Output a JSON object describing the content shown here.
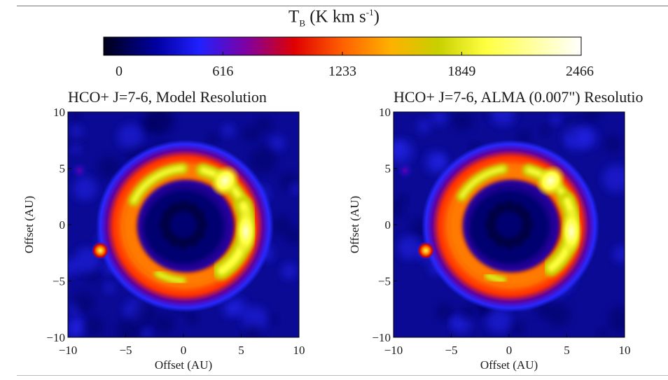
{
  "colorbar": {
    "title_main": "T",
    "title_sub": "B",
    "title_unit": " (K km s",
    "title_sup": "-1",
    "title_close": ")",
    "ticks": [
      "0",
      "616",
      "1233",
      "1849",
      "2466"
    ],
    "range": [
      0,
      2466
    ],
    "colors": [
      "#000018",
      "#0000a0",
      "#2020ff",
      "#8000a0",
      "#e00000",
      "#ff6000",
      "#ffb000",
      "#c8d000",
      "#ffff40",
      "#ffffff"
    ]
  },
  "chart_data": [
    {
      "type": "heatmap",
      "title": "HCO+ J=7-6, Model Resolution",
      "xlabel": "Offset (AU)",
      "ylabel": "Offset (AU)",
      "xlim": [
        -10,
        10
      ],
      "ylim": [
        -10,
        10
      ],
      "xticks": [
        "−10",
        "−5",
        "0",
        "5",
        "10"
      ],
      "yticks": [
        "10",
        "5",
        "0",
        "−5",
        "−10"
      ],
      "ring": {
        "center": [
          0,
          0
        ],
        "inner_radius_au": 3.5,
        "outer_radius_au": 6.3,
        "bright_side": "east"
      },
      "features": [
        {
          "x": -7.2,
          "y": -2.3,
          "value": 1849
        },
        {
          "x": -9,
          "y": 4.8,
          "value": 616
        }
      ]
    },
    {
      "type": "heatmap",
      "title": "HCO+ J=7-6, ALMA (0.007\") Resolutio",
      "xlabel": "Offset (AU)",
      "ylabel": "Offset (AU)",
      "xlim": [
        -10,
        10
      ],
      "ylim": [
        -10,
        10
      ],
      "xticks": [
        "−10",
        "−5",
        "0",
        "5",
        "10"
      ],
      "yticks": [
        "10",
        "5",
        "0",
        "−5",
        "−10"
      ],
      "ring": {
        "center": [
          0,
          0
        ],
        "inner_radius_au": 3.5,
        "outer_radius_au": 6.3,
        "bright_side": "east"
      },
      "features": [
        {
          "x": -7.2,
          "y": -2.3,
          "value": 1849
        },
        {
          "x": -9,
          "y": 4.8,
          "value": 616
        }
      ]
    }
  ]
}
